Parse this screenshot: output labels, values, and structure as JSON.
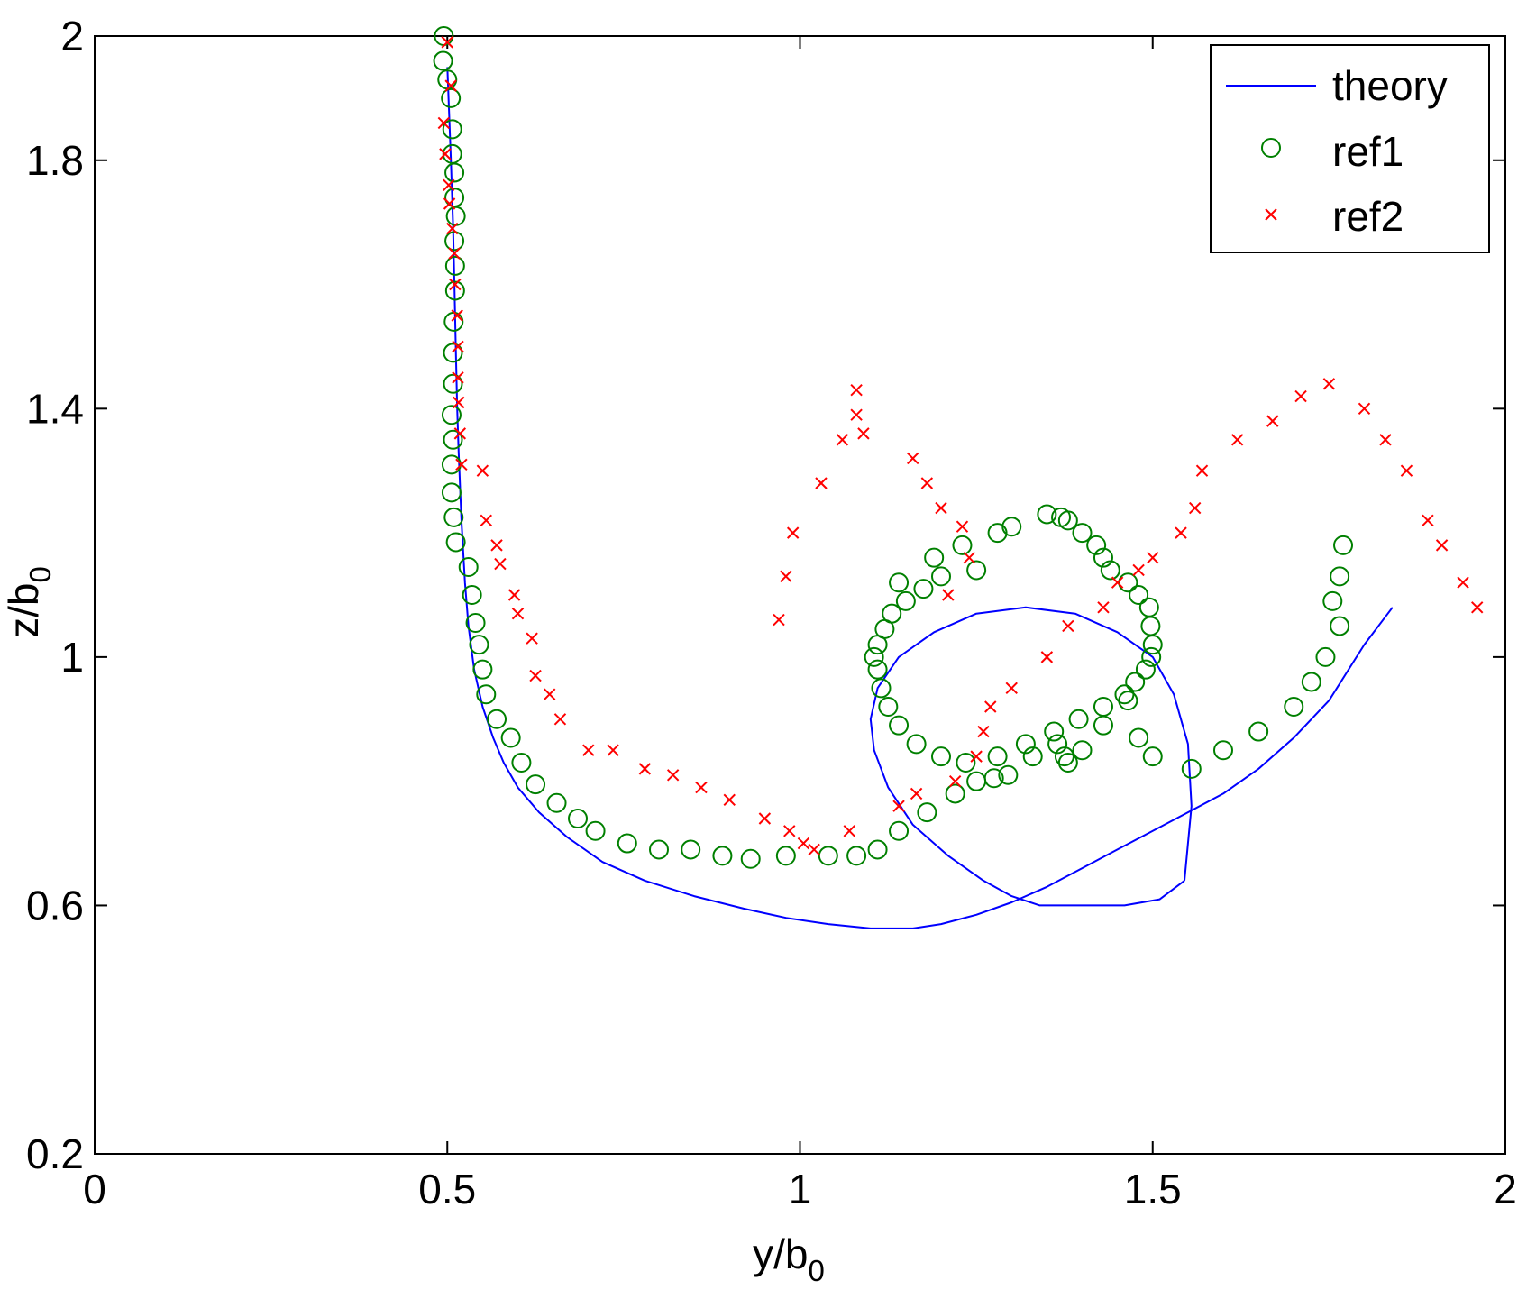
{
  "chart_data": {
    "type": "line",
    "title": "",
    "xlabel": {
      "main": "y/b",
      "sub": "0"
    },
    "ylabel": {
      "main": "z/b",
      "sub": "0"
    },
    "xlim": [
      0,
      2
    ],
    "ylim": [
      0.2,
      2
    ],
    "xticks": [
      0,
      0.5,
      1,
      1.5,
      2
    ],
    "xtick_labels": [
      "0",
      "0.5",
      "1",
      "1.5",
      "2"
    ],
    "yticks": [
      0.2,
      0.6,
      1,
      1.4,
      1.8,
      2
    ],
    "ytick_labels": [
      "0.2",
      "0.6",
      "1",
      "1.4",
      "1.8",
      "2"
    ],
    "grid": false,
    "legend_position": "top-right",
    "colors": {
      "theory": "#0000ff",
      "ref1": "#008000",
      "ref2": "#ff0000"
    },
    "series": [
      {
        "name": "theory",
        "style": "line",
        "x": [
          0.5,
          0.505,
          0.508,
          0.51,
          0.512,
          0.514,
          0.516,
          0.52,
          0.525,
          0.53,
          0.538,
          0.55,
          0.565,
          0.58,
          0.6,
          0.63,
          0.67,
          0.72,
          0.78,
          0.85,
          0.92,
          0.98,
          1.04,
          1.1,
          1.16,
          1.2,
          1.25,
          1.3,
          1.35,
          1.4,
          1.45,
          1.5,
          1.55,
          1.6,
          1.65,
          1.7,
          1.75,
          1.8,
          1.84,
          null,
          1.545,
          1.555,
          1.55,
          1.53,
          1.5,
          1.45,
          1.39,
          1.32,
          1.25,
          1.19,
          1.14,
          1.11,
          1.1,
          1.105,
          1.125,
          1.16,
          1.21,
          1.26,
          1.3,
          1.34,
          1.4,
          1.46,
          1.51,
          1.545
        ],
        "y": [
          1.95,
          1.8,
          1.7,
          1.6,
          1.5,
          1.4,
          1.33,
          1.22,
          1.12,
          1.05,
          0.98,
          0.92,
          0.87,
          0.83,
          0.79,
          0.75,
          0.71,
          0.67,
          0.64,
          0.615,
          0.595,
          0.58,
          0.57,
          0.563,
          0.563,
          0.57,
          0.585,
          0.605,
          0.63,
          0.66,
          0.69,
          0.72,
          0.75,
          0.78,
          0.82,
          0.87,
          0.93,
          1.02,
          1.08,
          null,
          0.64,
          0.76,
          0.86,
          0.94,
          1.0,
          1.04,
          1.07,
          1.08,
          1.07,
          1.04,
          1.0,
          0.95,
          0.9,
          0.85,
          0.79,
          0.73,
          0.68,
          0.64,
          0.615,
          0.6,
          0.6,
          0.6,
          0.61,
          0.64
        ]
      },
      {
        "name": "ref1",
        "style": "marker-circle",
        "x": [
          0.495,
          0.494,
          0.5,
          0.505,
          0.507,
          0.507,
          0.51,
          0.51,
          0.512,
          0.51,
          0.511,
          0.511,
          0.509,
          0.508,
          0.508,
          0.506,
          0.508,
          0.506,
          0.506,
          0.509,
          0.512,
          0.53,
          0.535,
          0.54,
          0.545,
          0.55,
          0.555,
          0.57,
          0.59,
          0.605,
          0.625,
          0.655,
          0.685,
          0.71,
          0.755,
          0.8,
          0.845,
          0.89,
          0.93,
          0.98,
          1.04,
          1.08,
          1.11,
          1.14,
          1.18,
          1.22,
          1.25,
          1.275,
          1.295,
          1.33,
          1.365,
          1.38,
          1.375,
          1.4,
          1.43,
          1.465,
          1.48,
          1.5,
          1.555,
          1.6,
          1.65,
          1.7,
          1.725,
          1.745,
          1.765,
          1.755,
          1.765,
          1.77,
          1.25,
          1.2,
          1.175,
          1.15,
          1.13,
          1.12,
          1.11,
          1.105,
          1.11,
          1.115,
          1.125,
          1.14,
          1.165,
          1.2,
          1.235,
          1.28,
          1.32,
          1.36,
          1.395,
          1.43,
          1.46,
          1.475,
          1.49,
          1.498,
          1.5,
          1.497,
          1.495,
          1.48,
          1.465,
          1.44,
          1.43,
          1.42,
          1.4,
          1.38,
          1.37,
          1.35,
          1.3,
          1.28,
          1.23,
          1.19,
          1.14
        ],
        "y": [
          2.0,
          1.96,
          1.93,
          1.9,
          1.85,
          1.81,
          1.78,
          1.74,
          1.71,
          1.67,
          1.63,
          1.59,
          1.54,
          1.49,
          1.44,
          1.39,
          1.35,
          1.31,
          1.265,
          1.225,
          1.185,
          1.145,
          1.1,
          1.055,
          1.02,
          0.98,
          0.94,
          0.9,
          0.87,
          0.83,
          0.795,
          0.765,
          0.74,
          0.72,
          0.7,
          0.69,
          0.69,
          0.68,
          0.675,
          0.68,
          0.68,
          0.68,
          0.69,
          0.72,
          0.75,
          0.78,
          0.8,
          0.805,
          0.81,
          0.84,
          0.86,
          0.83,
          0.84,
          0.85,
          0.89,
          0.93,
          0.87,
          0.84,
          0.82,
          0.85,
          0.88,
          0.92,
          0.96,
          1.0,
          1.05,
          1.09,
          1.13,
          1.18,
          1.14,
          1.13,
          1.11,
          1.09,
          1.07,
          1.045,
          1.02,
          1.0,
          0.98,
          0.95,
          0.92,
          0.89,
          0.86,
          0.84,
          0.83,
          0.84,
          0.86,
          0.88,
          0.9,
          0.92,
          0.94,
          0.96,
          0.98,
          1.0,
          1.02,
          1.05,
          1.08,
          1.1,
          1.12,
          1.14,
          1.16,
          1.18,
          1.2,
          1.22,
          1.225,
          1.23,
          1.21,
          1.2,
          1.18,
          1.16,
          1.12
        ]
      },
      {
        "name": "ref2",
        "style": "marker-x",
        "x": [
          0.5,
          0.505,
          0.495,
          0.497,
          0.502,
          0.503,
          0.507,
          0.51,
          0.511,
          0.514,
          0.515,
          0.515,
          0.516,
          0.518,
          0.52,
          0.55,
          0.555,
          0.57,
          0.575,
          0.595,
          0.6,
          0.62,
          0.625,
          0.645,
          0.66,
          0.7,
          0.735,
          0.78,
          0.82,
          0.86,
          0.9,
          0.95,
          0.985,
          1.005,
          1.02,
          1.07,
          1.14,
          1.165,
          1.22,
          1.25,
          1.26,
          1.27,
          1.3,
          1.35,
          1.38,
          1.43,
          1.45,
          1.48,
          1.5,
          1.54,
          1.56,
          1.57,
          1.62,
          1.67,
          1.71,
          1.75,
          1.8,
          1.83,
          1.86,
          1.89,
          1.91,
          1.94,
          1.96,
          1.21,
          1.24,
          1.23,
          1.2,
          1.18,
          1.16,
          1.09,
          1.08,
          1.08,
          1.06,
          1.03,
          0.99,
          0.98,
          0.97
        ],
        "y": [
          1.99,
          1.92,
          1.86,
          1.81,
          1.76,
          1.73,
          1.69,
          1.65,
          1.6,
          1.55,
          1.5,
          1.45,
          1.41,
          1.36,
          1.31,
          1.3,
          1.22,
          1.18,
          1.15,
          1.1,
          1.07,
          1.03,
          0.97,
          0.94,
          0.9,
          0.85,
          0.85,
          0.82,
          0.81,
          0.79,
          0.77,
          0.74,
          0.72,
          0.7,
          0.69,
          0.72,
          0.76,
          0.78,
          0.8,
          0.84,
          0.88,
          0.92,
          0.95,
          1.0,
          1.05,
          1.08,
          1.12,
          1.14,
          1.16,
          1.2,
          1.24,
          1.3,
          1.35,
          1.38,
          1.42,
          1.44,
          1.4,
          1.35,
          1.3,
          1.22,
          1.18,
          1.12,
          1.08,
          1.1,
          1.16,
          1.21,
          1.24,
          1.28,
          1.32,
          1.36,
          1.39,
          1.43,
          1.35,
          1.28,
          1.2,
          1.13,
          1.06
        ]
      }
    ]
  }
}
